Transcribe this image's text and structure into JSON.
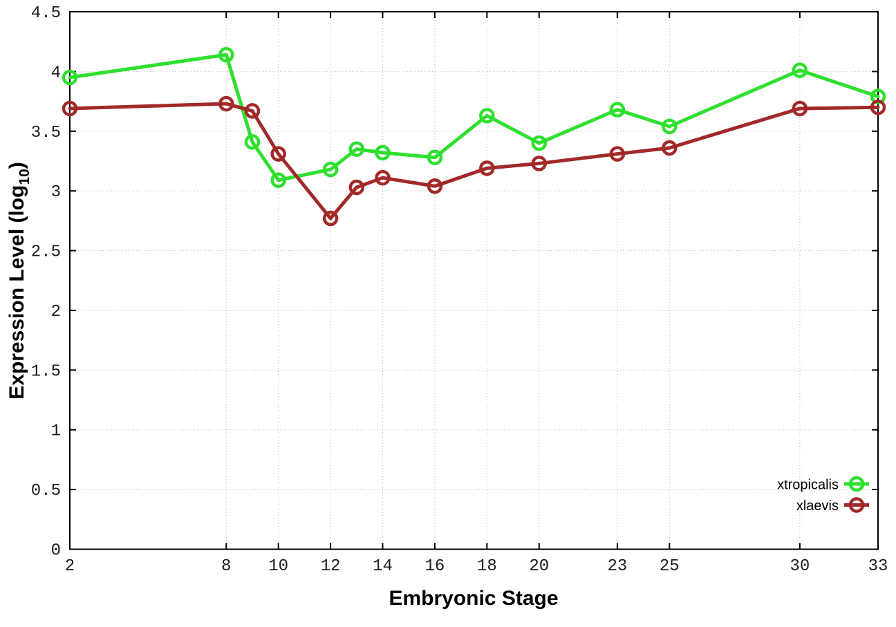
{
  "figure": {
    "background_color": "#ffffff",
    "frame_color": "#000000",
    "grid_color": "#bbbbbb",
    "tick_label_color": "#1c1c1c"
  },
  "chart_data": {
    "type": "line",
    "title": "",
    "xlabel": "Embryonic Stage",
    "ylabel_prefix": "Expression Level (log",
    "ylabel_sub": "10",
    "ylabel_suffix": ")",
    "xlim": [
      2,
      33
    ],
    "ylim": [
      0,
      4.5
    ],
    "xticks": [
      2,
      8,
      10,
      12,
      14,
      16,
      18,
      20,
      23,
      25,
      30,
      33
    ],
    "yticks": [
      0,
      0.5,
      1,
      1.5,
      2,
      2.5,
      3,
      3.5,
      4,
      4.5
    ],
    "grid": true,
    "legend_position": "inside-bottom-right",
    "x": [
      2,
      8,
      9,
      10,
      12,
      13,
      14,
      16,
      18,
      20,
      23,
      25,
      30,
      33
    ],
    "series": [
      {
        "name": "xtropicalis",
        "color": "#2ee02e",
        "marker": "open-circle",
        "values": [
          3.95,
          4.14,
          3.41,
          3.09,
          3.18,
          3.35,
          3.32,
          3.28,
          3.63,
          3.4,
          3.68,
          3.54,
          4.01,
          3.79
        ]
      },
      {
        "name": "xlaevis",
        "color": "#a32929",
        "marker": "open-circle",
        "values": [
          3.69,
          3.73,
          3.67,
          3.31,
          2.77,
          3.03,
          3.11,
          3.04,
          3.19,
          3.23,
          3.31,
          3.36,
          3.69,
          3.7
        ]
      }
    ]
  }
}
